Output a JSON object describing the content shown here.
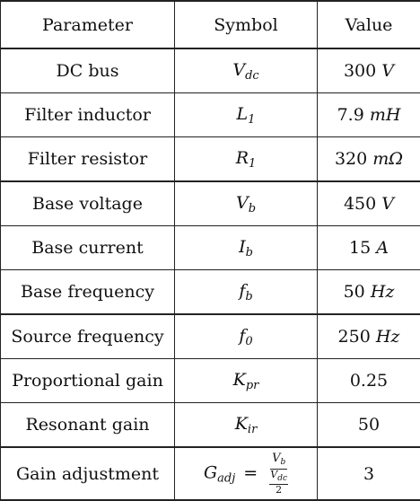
{
  "headers": {
    "parameter": "Parameter",
    "symbol": "Symbol",
    "value": "Value"
  },
  "rows": [
    {
      "parameter": "DC bus",
      "symbol_base": "V",
      "symbol_sub": "dc",
      "value_num": "300",
      "value_unit": "V"
    },
    {
      "parameter": "Filter inductor",
      "symbol_base": "L",
      "symbol_sub": "1",
      "value_num": "7.9",
      "value_unit": "mH"
    },
    {
      "parameter": "Filter resistor",
      "symbol_base": "R",
      "symbol_sub": "1",
      "value_num": "320",
      "value_unit": "mΩ"
    },
    {
      "parameter": "Base voltage",
      "symbol_base": "V",
      "symbol_sub": "b",
      "value_num": "450",
      "value_unit": "V"
    },
    {
      "parameter": "Base current",
      "symbol_base": "I",
      "symbol_sub": "b",
      "value_num": "15",
      "value_unit": "A"
    },
    {
      "parameter": "Base frequency",
      "symbol_base": "f",
      "symbol_sub": "b",
      "value_num": "50",
      "value_unit": "Hz"
    },
    {
      "parameter": "Source frequency",
      "symbol_base": "f",
      "symbol_sub": "0",
      "value_num": "250",
      "value_unit": "Hz"
    },
    {
      "parameter": "Proportional gain",
      "symbol_base": "K",
      "symbol_sub": "pr",
      "value_num": "0.25",
      "value_unit": ""
    },
    {
      "parameter": "Resonant gain",
      "symbol_base": "K",
      "symbol_sub": "ir",
      "value_num": "50",
      "value_unit": ""
    },
    {
      "parameter": "Gain adjustment",
      "symbol_base": "G",
      "symbol_sub": "adj",
      "symbol_eq": "=",
      "frac_num_base": "V",
      "frac_num_sub": "b",
      "frac_den_base": "V",
      "frac_den_sub": "dc",
      "frac_den_den": "2",
      "value_num": "3",
      "value_unit": ""
    }
  ]
}
